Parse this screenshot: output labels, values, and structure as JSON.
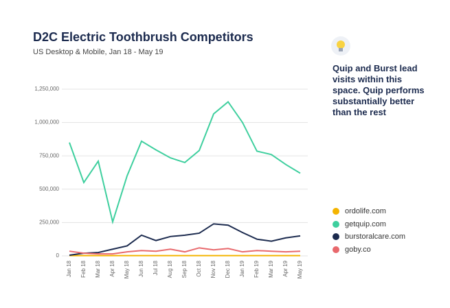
{
  "chart_data": {
    "type": "line",
    "title": "D2C Electric Toothbrush Competitors",
    "subtitle": "US Desktop & Mobile, Jan 18 - May 19",
    "annotation": "Quip and Burst lead visits within this space. Quip performs substantially better than the rest",
    "categories": [
      "Jan 18",
      "Feb 18",
      "Mar 18",
      "Apr 18",
      "May 18",
      "Jun 18",
      "Jul 18",
      "Aug 18",
      "Sep 18",
      "Oct 18",
      "Nov 18",
      "Dec 18",
      "Jan 19",
      "Feb 19",
      "Mar 19",
      "Apr 19",
      "May 19"
    ],
    "series": [
      {
        "name": "ordolife.com",
        "color": "#f4b400",
        "values": [
          2000,
          2000,
          2000,
          2000,
          2000,
          2000,
          2000,
          2000,
          2000,
          2000,
          2000,
          2000,
          2000,
          2000,
          2000,
          2000,
          2000
        ]
      },
      {
        "name": "getquip.com",
        "color": "#3ecf9e",
        "values": [
          850000,
          550000,
          710000,
          255000,
          600000,
          860000,
          795000,
          735000,
          700000,
          790000,
          1065000,
          1155000,
          1000000,
          785000,
          760000,
          685000,
          620000
        ]
      },
      {
        "name": "burstoralcare.com",
        "color": "#1b2a4e",
        "values": [
          5000,
          20000,
          25000,
          50000,
          75000,
          155000,
          115000,
          145000,
          155000,
          170000,
          240000,
          230000,
          175000,
          125000,
          110000,
          135000,
          150000
        ]
      },
      {
        "name": "goby.co",
        "color": "#e8686c",
        "values": [
          35000,
          20000,
          15000,
          15000,
          30000,
          40000,
          35000,
          50000,
          30000,
          60000,
          45000,
          55000,
          30000,
          40000,
          35000,
          30000,
          35000
        ]
      }
    ],
    "ylim": [
      0,
      1250000
    ],
    "yticks": [
      0,
      {
        "value": 250000,
        "label": "250,000"
      },
      {
        "value": 500000,
        "label": "500,000"
      },
      {
        "value": 750000,
        "label": "750,000"
      },
      {
        "value": 1000000,
        "label": "1,000,000"
      },
      {
        "value": 1250000,
        "label": "1,250,000"
      }
    ],
    "grid": true
  }
}
